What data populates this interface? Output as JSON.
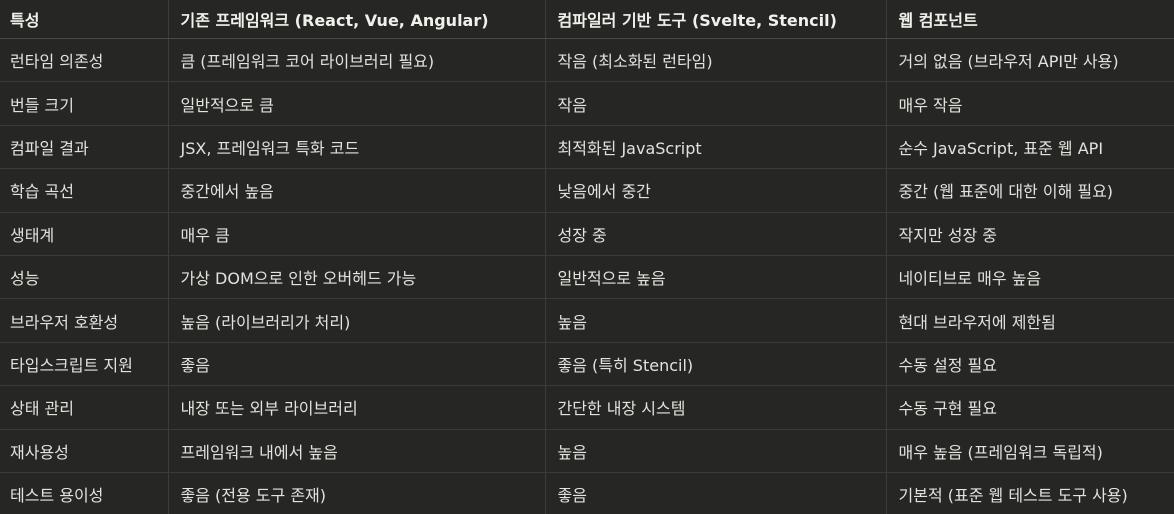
{
  "table": {
    "headers": [
      "특성",
      "기존 프레임워크 (React, Vue, Angular)",
      "컴파일러 기반 도구 (Svelte, Stencil)",
      "웹 컴포넌트"
    ],
    "rows": [
      [
        "런타임 의존성",
        "큼 (프레임워크 코어 라이브러리 필요)",
        "작음 (최소화된 런타임)",
        "거의 없음 (브라우저 API만 사용)"
      ],
      [
        "번들 크기",
        "일반적으로 큼",
        "작음",
        "매우 작음"
      ],
      [
        "컴파일 결과",
        "JSX, 프레임워크 특화 코드",
        "최적화된 JavaScript",
        "순수 JavaScript, 표준 웹 API"
      ],
      [
        "학습 곡선",
        "중간에서 높음",
        "낮음에서 중간",
        "중간 (웹 표준에 대한 이해 필요)"
      ],
      [
        "생태계",
        "매우 큼",
        "성장 중",
        "작지만 성장 중"
      ],
      [
        "성능",
        "가상 DOM으로 인한 오버헤드 가능",
        "일반적으로 높음",
        "네이티브로 매우 높음"
      ],
      [
        "브라우저 호환성",
        "높음 (라이브러리가 처리)",
        "높음",
        "현대 브라우저에 제한됨"
      ],
      [
        "타입스크립트 지원",
        "좋음",
        "좋음 (특히 Stencil)",
        "수동 설정 필요"
      ],
      [
        "상태 관리",
        "내장 또는 외부 라이브러리",
        "간단한 내장 시스템",
        "수동 구현 필요"
      ],
      [
        "재사용성",
        "프레임워크 내에서 높음",
        "높음",
        "매우 높음 (프레임워크 독립적)"
      ],
      [
        "테스트 용이성",
        "좋음 (전용 도구 존재)",
        "좋음",
        "기본적 (표준 웹 테스트 도구 사용)"
      ]
    ]
  }
}
